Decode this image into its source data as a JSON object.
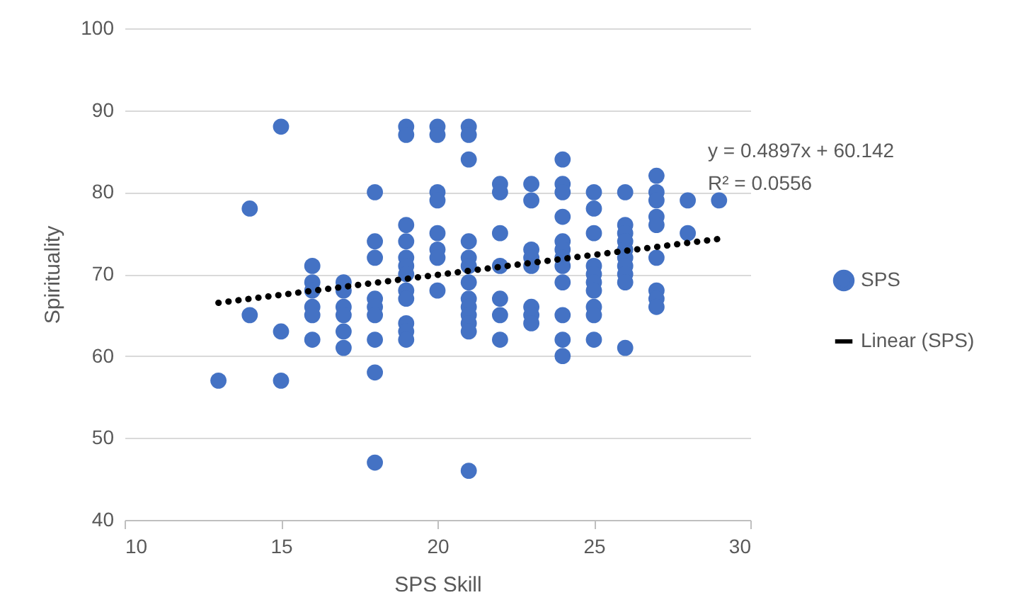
{
  "chart_data": {
    "type": "scatter",
    "xlabel": "SPS Skill",
    "ylabel": "Spirituality",
    "xlim": [
      10,
      30
    ],
    "xticks": [
      10,
      15,
      20,
      25,
      30
    ],
    "ylim": [
      40,
      100
    ],
    "yticks": [
      40,
      50,
      60,
      70,
      80,
      90,
      100
    ],
    "grid": "y",
    "legend": "right",
    "annotations": [
      "y = 0.4897x + 60.142",
      "R² = 0.0556"
    ],
    "series": [
      {
        "name": "SPS",
        "color": "#4472c4",
        "marker": "circle",
        "x": [
          13,
          14,
          14,
          15,
          15,
          15,
          16,
          16,
          16,
          16,
          16,
          16,
          17,
          17,
          17,
          17,
          17,
          17,
          18,
          18,
          18,
          18,
          18,
          18,
          18,
          18,
          18,
          19,
          19,
          19,
          19,
          19,
          19,
          19,
          19,
          19,
          19,
          19,
          19,
          20,
          20,
          20,
          20,
          20,
          20,
          20,
          20,
          21,
          21,
          21,
          21,
          21,
          21,
          21,
          21,
          21,
          21,
          21,
          21,
          21,
          22,
          22,
          22,
          22,
          22,
          22,
          22,
          23,
          23,
          23,
          23,
          23,
          23,
          23,
          23,
          24,
          24,
          24,
          24,
          24,
          24,
          24,
          24,
          24,
          24,
          24,
          24,
          25,
          25,
          25,
          25,
          25,
          25,
          25,
          25,
          25,
          25,
          26,
          26,
          26,
          26,
          26,
          26,
          26,
          26,
          26,
          26,
          27,
          27,
          27,
          27,
          27,
          27,
          27,
          27,
          27,
          28,
          28,
          29
        ],
        "values": [
          57,
          78,
          65,
          88,
          63,
          57,
          71,
          69,
          68,
          66,
          65,
          62,
          69,
          68,
          66,
          65,
          63,
          61,
          80,
          74,
          72,
          67,
          66,
          65,
          62,
          58,
          47,
          88,
          87,
          76,
          74,
          72,
          71,
          70,
          68,
          67,
          64,
          63,
          62,
          88,
          87,
          80,
          79,
          75,
          73,
          72,
          68,
          88,
          87,
          84,
          74,
          72,
          71,
          69,
          67,
          66,
          65,
          64,
          63,
          46,
          81,
          80,
          75,
          71,
          67,
          65,
          62,
          81,
          79,
          73,
          72,
          71,
          66,
          65,
          64,
          84,
          81,
          80,
          77,
          74,
          73,
          72,
          71,
          69,
          65,
          62,
          60,
          80,
          78,
          75,
          71,
          70,
          69,
          68,
          66,
          65,
          62,
          80,
          76,
          75,
          74,
          73,
          72,
          71,
          70,
          69,
          61,
          82,
          80,
          79,
          77,
          76,
          72,
          68,
          67,
          66,
          79,
          75,
          79
        ]
      },
      {
        "name": "Linear (SPS)",
        "color": "#000000",
        "type": "line",
        "line_style": "dotted",
        "x": [
          13,
          29
        ],
        "values": [
          66.5,
          74.3
        ]
      }
    ]
  }
}
